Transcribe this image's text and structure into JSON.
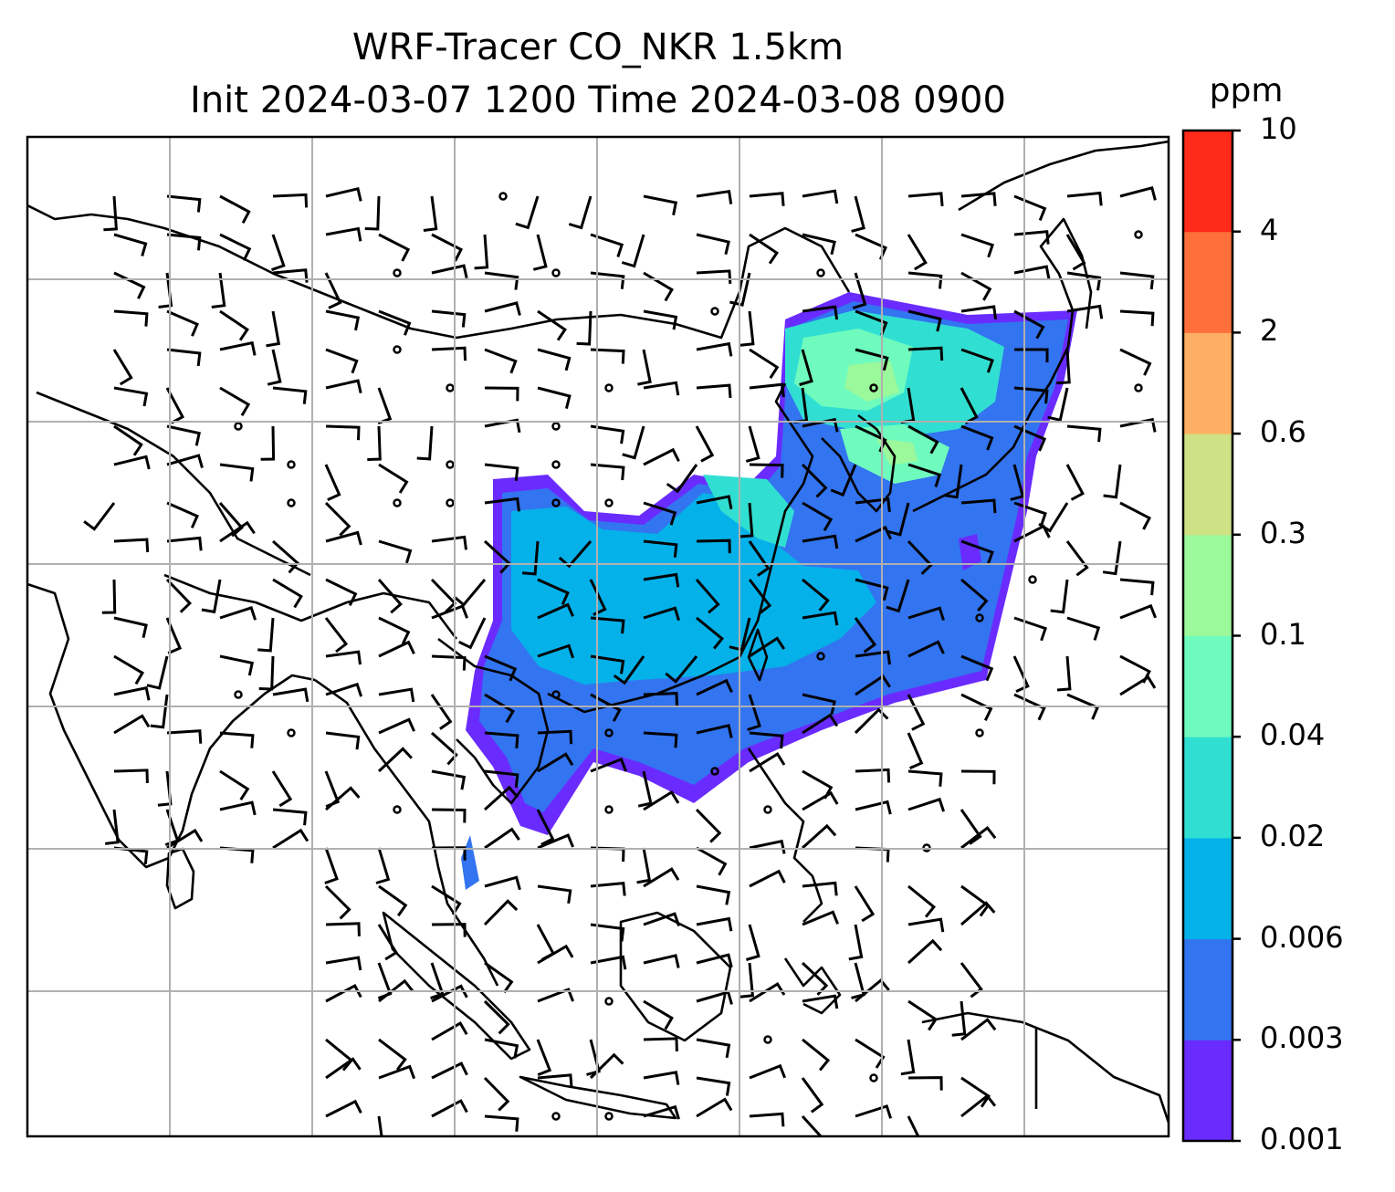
{
  "title": {
    "line1": "WRF-Tracer CO_NKR 1.5km",
    "line2": "Init 2024-03-07 1200 Time 2024-03-08 0900"
  },
  "colorbar": {
    "unit": "ppm",
    "levels": [
      "0.001",
      "0.003",
      "0.006",
      "0.02",
      "0.04",
      "0.1",
      "0.3",
      "0.6",
      "2",
      "4",
      "10"
    ],
    "colors": [
      "#6a2bff",
      "#3374f0",
      "#05b1e9",
      "#31dfd2",
      "#6ffbbd",
      "#9bf89b",
      "#cfe185",
      "#fdb063",
      "#ff6f3b",
      "#ff2a1a"
    ]
  },
  "plume": {
    "field": "CO_NKR",
    "level": "1.5km"
  }
}
